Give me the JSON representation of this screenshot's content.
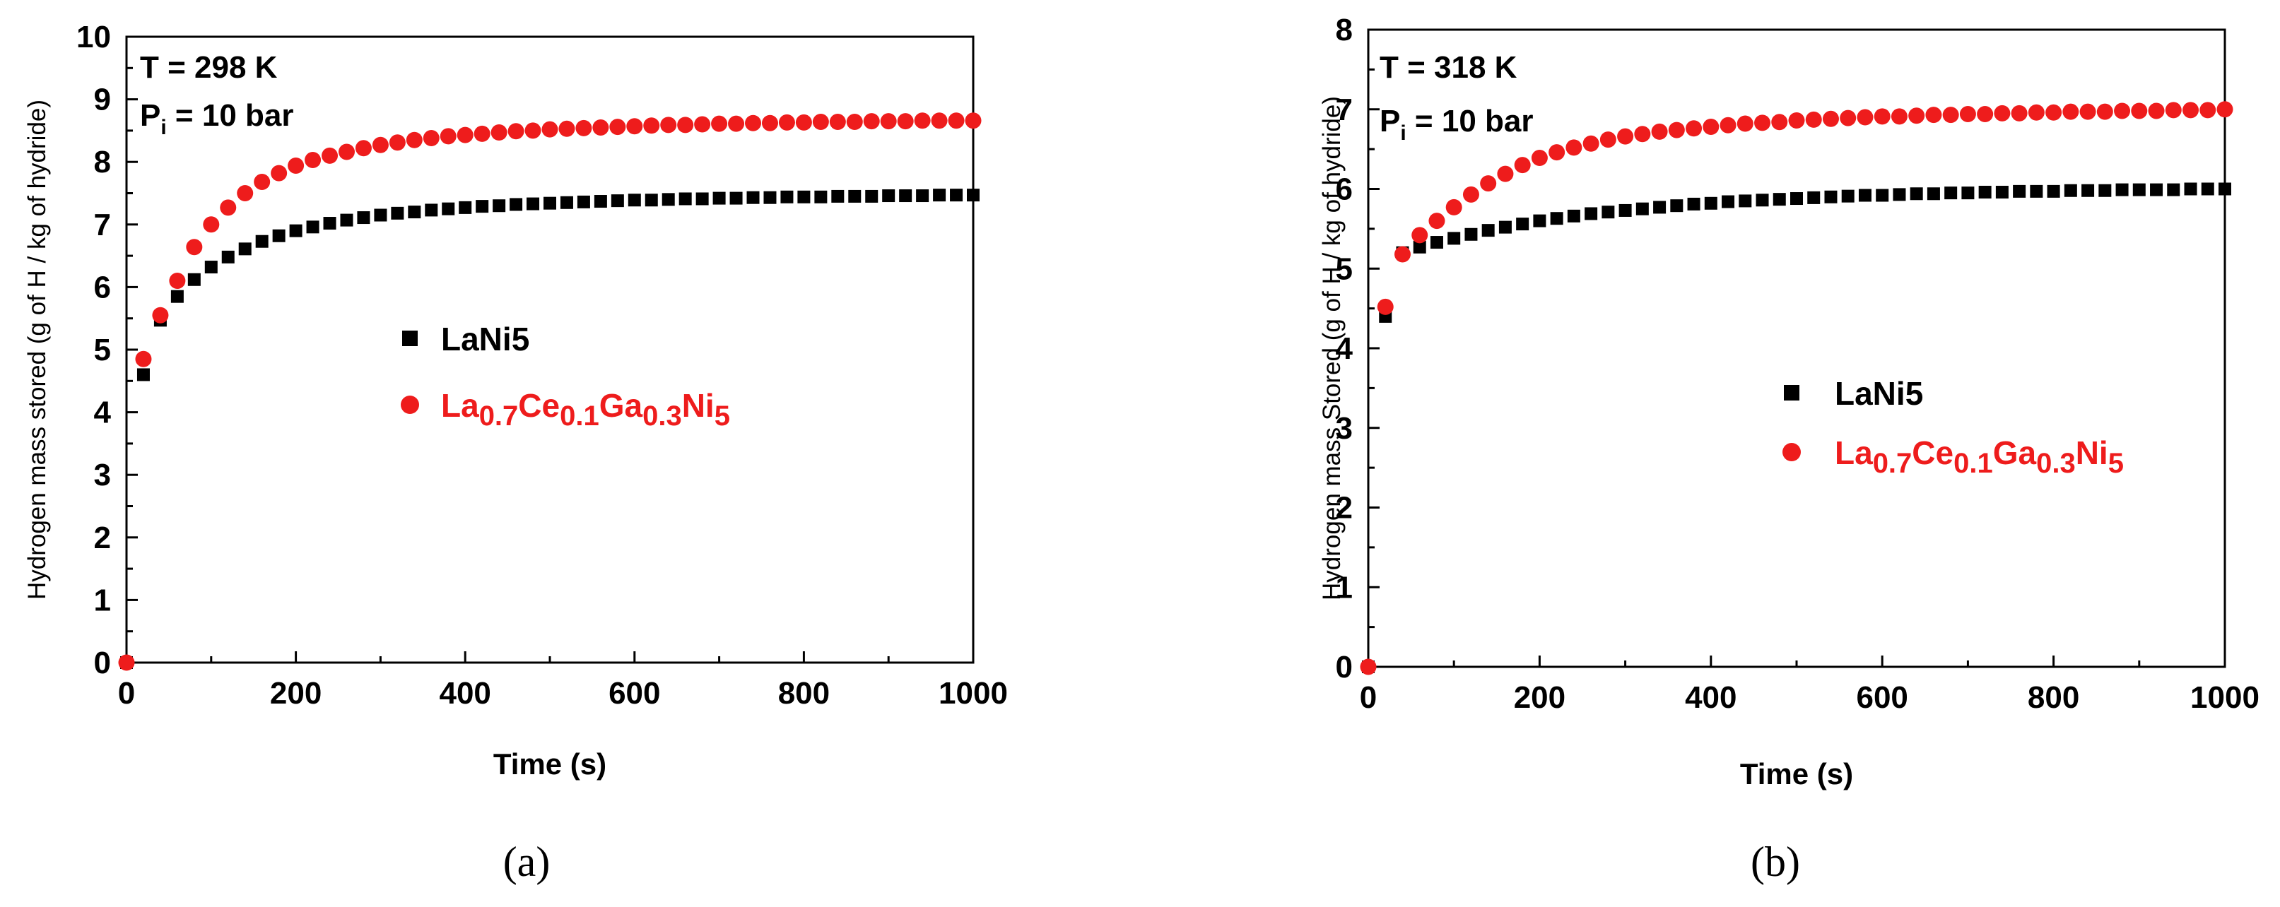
{
  "chart_data": [
    {
      "panel": "a",
      "type": "scatter",
      "caption": "(a)",
      "title": "",
      "annotation": {
        "line1": "T = 298 K",
        "p_main": "P",
        "p_sub": "i",
        "p_rest": " = 10 bar"
      },
      "xlabel": "Time (s)",
      "ylabel": "Hydrogen mass stored (g of H / kg of hydride)",
      "xlim": [
        0,
        1000
      ],
      "ylim": [
        0,
        10
      ],
      "xticks": [
        "0",
        "200",
        "400",
        "600",
        "800",
        "1000"
      ],
      "yticks": [
        "0",
        "1",
        "2",
        "3",
        "4",
        "5",
        "6",
        "7",
        "8",
        "9",
        "10"
      ],
      "legend_position": "center",
      "series": [
        {
          "name": "LaNi5",
          "legend_parts": [
            {
              "t": "LaNi",
              "sub": false
            },
            {
              "t": "5",
              "sub": false
            }
          ],
          "color": "#000000",
          "marker": "square",
          "x": [
            0,
            20,
            40,
            60,
            80,
            100,
            120,
            140,
            160,
            180,
            200,
            220,
            240,
            260,
            280,
            300,
            320,
            340,
            360,
            380,
            400,
            420,
            440,
            460,
            480,
            500,
            520,
            540,
            560,
            580,
            600,
            620,
            640,
            660,
            680,
            700,
            720,
            740,
            760,
            780,
            800,
            820,
            840,
            860,
            880,
            900,
            920,
            940,
            960,
            980,
            1000
          ],
          "y": [
            0,
            4.6,
            5.47,
            5.85,
            6.12,
            6.32,
            6.48,
            6.61,
            6.73,
            6.82,
            6.9,
            6.96,
            7.02,
            7.07,
            7.11,
            7.15,
            7.18,
            7.2,
            7.23,
            7.25,
            7.27,
            7.29,
            7.3,
            7.32,
            7.33,
            7.34,
            7.35,
            7.36,
            7.37,
            7.38,
            7.39,
            7.39,
            7.4,
            7.41,
            7.41,
            7.42,
            7.42,
            7.43,
            7.43,
            7.44,
            7.44,
            7.44,
            7.45,
            7.45,
            7.45,
            7.46,
            7.46,
            7.46,
            7.47,
            7.47,
            7.47
          ]
        },
        {
          "name": "La0.7Ce0.1Ga0.3Ni5",
          "legend_parts": [
            {
              "t": "La",
              "sub": false
            },
            {
              "t": "0.7",
              "sub": true
            },
            {
              "t": "Ce",
              "sub": false
            },
            {
              "t": "0.1",
              "sub": true
            },
            {
              "t": "Ga",
              "sub": false
            },
            {
              "t": "0.3",
              "sub": true
            },
            {
              "t": "Ni",
              "sub": false
            },
            {
              "t": "5",
              "sub": true
            }
          ],
          "color": "#ee1c1c",
          "marker": "circle",
          "x": [
            0,
            20,
            40,
            60,
            80,
            100,
            120,
            140,
            160,
            180,
            200,
            220,
            240,
            260,
            280,
            300,
            320,
            340,
            360,
            380,
            400,
            420,
            440,
            460,
            480,
            500,
            520,
            540,
            560,
            580,
            600,
            620,
            640,
            660,
            680,
            700,
            720,
            740,
            760,
            780,
            800,
            820,
            840,
            860,
            880,
            900,
            920,
            940,
            960,
            980,
            1000
          ],
          "y": [
            0,
            4.85,
            5.55,
            6.1,
            6.64,
            7.0,
            7.27,
            7.5,
            7.68,
            7.82,
            7.94,
            8.03,
            8.1,
            8.16,
            8.22,
            8.27,
            8.31,
            8.35,
            8.38,
            8.41,
            8.43,
            8.45,
            8.47,
            8.49,
            8.5,
            8.52,
            8.53,
            8.54,
            8.55,
            8.56,
            8.57,
            8.58,
            8.59,
            8.59,
            8.6,
            8.61,
            8.61,
            8.62,
            8.62,
            8.63,
            8.63,
            8.64,
            8.64,
            8.64,
            8.65,
            8.65,
            8.65,
            8.66,
            8.66,
            8.66,
            8.66
          ]
        }
      ]
    },
    {
      "panel": "b",
      "type": "scatter",
      "caption": "(b)",
      "title": "",
      "annotation": {
        "line1": "T = 318 K",
        "p_main": "P",
        "p_sub": "i",
        "p_rest": " = 10 bar"
      },
      "xlabel": "Time (s)",
      "ylabel": "Hydrogen mass Stored (g of H / kg of hydride)",
      "xlim": [
        0,
        1000
      ],
      "ylim": [
        0,
        8
      ],
      "xticks": [
        "0",
        "200",
        "400",
        "600",
        "800",
        "1000"
      ],
      "yticks": [
        "0",
        "1",
        "2",
        "3",
        "4",
        "5",
        "6",
        "7",
        "8"
      ],
      "legend_position": "center-right",
      "series": [
        {
          "name": "LaNi5",
          "legend_parts": [
            {
              "t": "LaNi",
              "sub": false
            },
            {
              "t": "5",
              "sub": false
            }
          ],
          "color": "#000000",
          "marker": "square",
          "x": [
            0,
            20,
            40,
            60,
            80,
            100,
            120,
            140,
            160,
            180,
            200,
            220,
            240,
            260,
            280,
            300,
            320,
            340,
            360,
            380,
            400,
            420,
            440,
            460,
            480,
            500,
            520,
            540,
            560,
            580,
            600,
            620,
            640,
            660,
            680,
            700,
            720,
            740,
            760,
            780,
            800,
            820,
            840,
            860,
            880,
            900,
            920,
            940,
            960,
            980,
            1000
          ],
          "y": [
            0,
            4.4,
            5.2,
            5.27,
            5.33,
            5.38,
            5.43,
            5.48,
            5.52,
            5.56,
            5.6,
            5.63,
            5.66,
            5.69,
            5.71,
            5.73,
            5.75,
            5.77,
            5.79,
            5.81,
            5.82,
            5.84,
            5.85,
            5.86,
            5.87,
            5.88,
            5.89,
            5.9,
            5.91,
            5.92,
            5.92,
            5.93,
            5.94,
            5.94,
            5.95,
            5.95,
            5.96,
            5.96,
            5.97,
            5.97,
            5.97,
            5.98,
            5.98,
            5.98,
            5.99,
            5.99,
            5.99,
            5.99,
            6.0,
            6.0,
            6.0
          ]
        },
        {
          "name": "La0.7Ce0.1Ga0.3Ni5",
          "legend_parts": [
            {
              "t": "La",
              "sub": false
            },
            {
              "t": "0.7",
              "sub": true
            },
            {
              "t": "Ce",
              "sub": false
            },
            {
              "t": "0.1",
              "sub": true
            },
            {
              "t": "Ga",
              "sub": false
            },
            {
              "t": "0.3",
              "sub": true
            },
            {
              "t": "Ni",
              "sub": false
            },
            {
              "t": "5",
              "sub": true
            }
          ],
          "color": "#ee1c1c",
          "marker": "circle",
          "x": [
            0,
            20,
            40,
            60,
            80,
            100,
            120,
            140,
            160,
            180,
            200,
            220,
            240,
            260,
            280,
            300,
            320,
            340,
            360,
            380,
            400,
            420,
            440,
            460,
            480,
            500,
            520,
            540,
            560,
            580,
            600,
            620,
            640,
            660,
            680,
            700,
            720,
            740,
            760,
            780,
            800,
            820,
            840,
            860,
            880,
            900,
            920,
            940,
            960,
            980,
            1000
          ],
          "y": [
            0,
            4.52,
            5.18,
            5.42,
            5.6,
            5.77,
            5.93,
            6.07,
            6.19,
            6.3,
            6.39,
            6.46,
            6.52,
            6.57,
            6.62,
            6.66,
            6.69,
            6.72,
            6.74,
            6.76,
            6.78,
            6.8,
            6.82,
            6.83,
            6.84,
            6.86,
            6.87,
            6.88,
            6.89,
            6.9,
            6.91,
            6.91,
            6.92,
            6.93,
            6.93,
            6.94,
            6.94,
            6.95,
            6.95,
            6.96,
            6.96,
            6.97,
            6.97,
            6.97,
            6.98,
            6.98,
            6.98,
            6.99,
            6.99,
            6.99,
            7.0
          ]
        }
      ]
    }
  ]
}
